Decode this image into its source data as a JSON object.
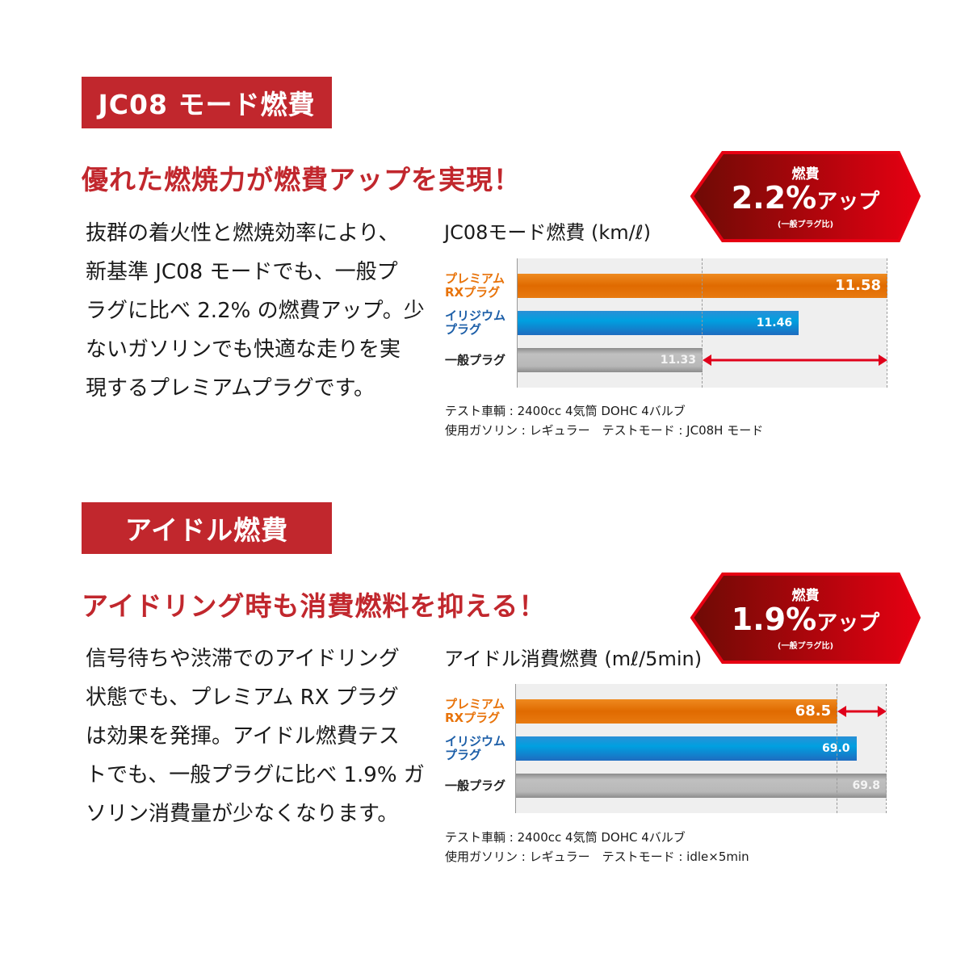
{
  "sections": [
    {
      "tag": "JC08 モード燃費",
      "headline": "優れた燃焼力が燃費アップを実現！",
      "body_lines": [
        "抜群の着火性と燃焼効率により、",
        "新基準 JC08 モードでも、一般プ",
        "ラグに比べ 2.2% の燃費アップ。少",
        "ないガソリンでも快適な走りを実",
        "現するプレミアムプラグです。"
      ],
      "badge": {
        "top": "燃費",
        "value": "2.2%",
        "suffix": "アップ",
        "note": "(一般プラグ比)"
      },
      "notes": [
        "テスト車輌 : 2400cc 4気筒 DOHC 4バルブ",
        "使用ガソリン : レギュラー　テストモード : JC08H モード"
      ]
    },
    {
      "tag": "アイドル燃費",
      "headline": "アイドリング時も消費燃料を抑える！",
      "body_lines": [
        "信号待ちや渋滞でのアイドリング",
        "状態でも、プレミアム RX プラグ",
        "は効果を発揮。アイドル燃費テス",
        "トでも、一般プラグに比べ 1.9% ガ",
        "ソリン消費量が少なくなります。"
      ],
      "badge": {
        "top": "燃費",
        "value": "1.9%",
        "suffix": "アップ",
        "note": "(一般プラグ比)"
      },
      "notes": [
        "テスト車輌 : 2400cc 4気筒 DOHC 4バルブ",
        "使用ガソリン : レギュラー　テストモード : idle×5min"
      ]
    }
  ],
  "colors": {
    "accent": "#c1272d",
    "premium": "#e8730a",
    "iridium": "#0099d8",
    "standard": "#a8a8a8",
    "arrow": "#e0001b"
  },
  "chart_data": [
    {
      "type": "bar",
      "orientation": "horizontal",
      "title": "JC08モード燃費 (km/ℓ)",
      "categories": [
        "プレミアム\nRXプラグ",
        "イリジウム\nプラグ",
        "一般プラグ"
      ],
      "values": [
        11.58,
        11.46,
        11.33
      ],
      "value_labels": [
        "11.58",
        "11.46",
        "11.33"
      ],
      "xlim": [
        11.08,
        11.58
      ],
      "reference_lines": [
        11.33,
        11.58
      ],
      "annotation_arrow": [
        11.33,
        11.58
      ]
    },
    {
      "type": "bar",
      "orientation": "horizontal",
      "title": "アイドル消費燃費 (mℓ/5min)",
      "categories": [
        "プレミアム\nRXプラグ",
        "イリジウム\nプラグ",
        "一般プラグ"
      ],
      "values": [
        68.5,
        69.0,
        69.8
      ],
      "value_labels": [
        "68.5",
        "69.0",
        "69.8"
      ],
      "xlim": [
        60.0,
        69.8
      ],
      "reference_lines": [
        68.5,
        69.8
      ],
      "annotation_arrow": [
        68.5,
        69.8
      ]
    }
  ]
}
